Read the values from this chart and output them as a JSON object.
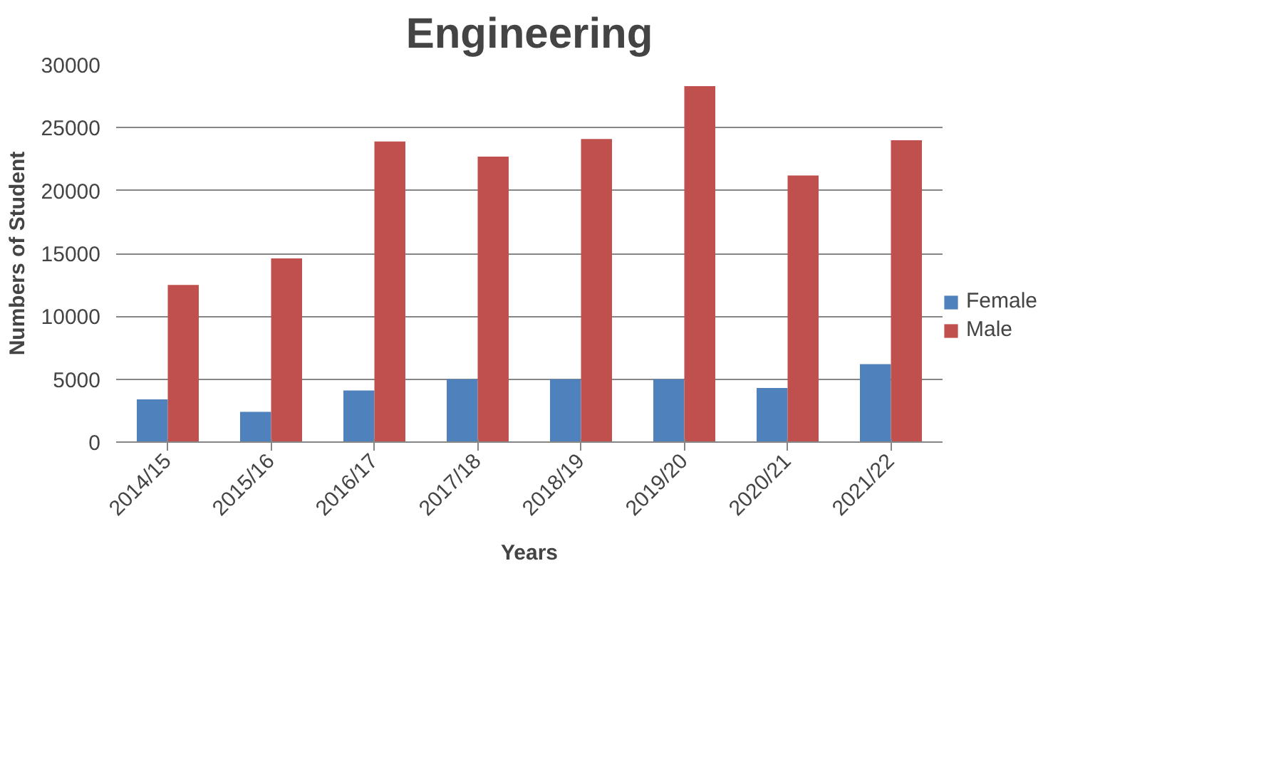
{
  "chart_data": {
    "type": "bar",
    "title": "Engineering",
    "xlabel": "Years",
    "ylabel": "Numbers of Student",
    "categories": [
      "2014/15",
      "2015/16",
      "2016/17",
      "2017/18",
      "2018/19",
      "2019/20",
      "2020/21",
      "2021/22"
    ],
    "series": [
      {
        "name": "Female",
        "color": "#4f81bd",
        "values": [
          3400,
          2400,
          4100,
          5000,
          5000,
          5000,
          4300,
          6200
        ]
      },
      {
        "name": "Male",
        "color": "#c0504d",
        "values": [
          12500,
          14600,
          23900,
          22700,
          24100,
          28300,
          21200,
          24000
        ]
      }
    ],
    "ylim": [
      0,
      30000
    ],
    "yticks": [
      0,
      5000,
      10000,
      15000,
      20000,
      25000,
      30000
    ],
    "grid": "y",
    "legend": "right"
  }
}
